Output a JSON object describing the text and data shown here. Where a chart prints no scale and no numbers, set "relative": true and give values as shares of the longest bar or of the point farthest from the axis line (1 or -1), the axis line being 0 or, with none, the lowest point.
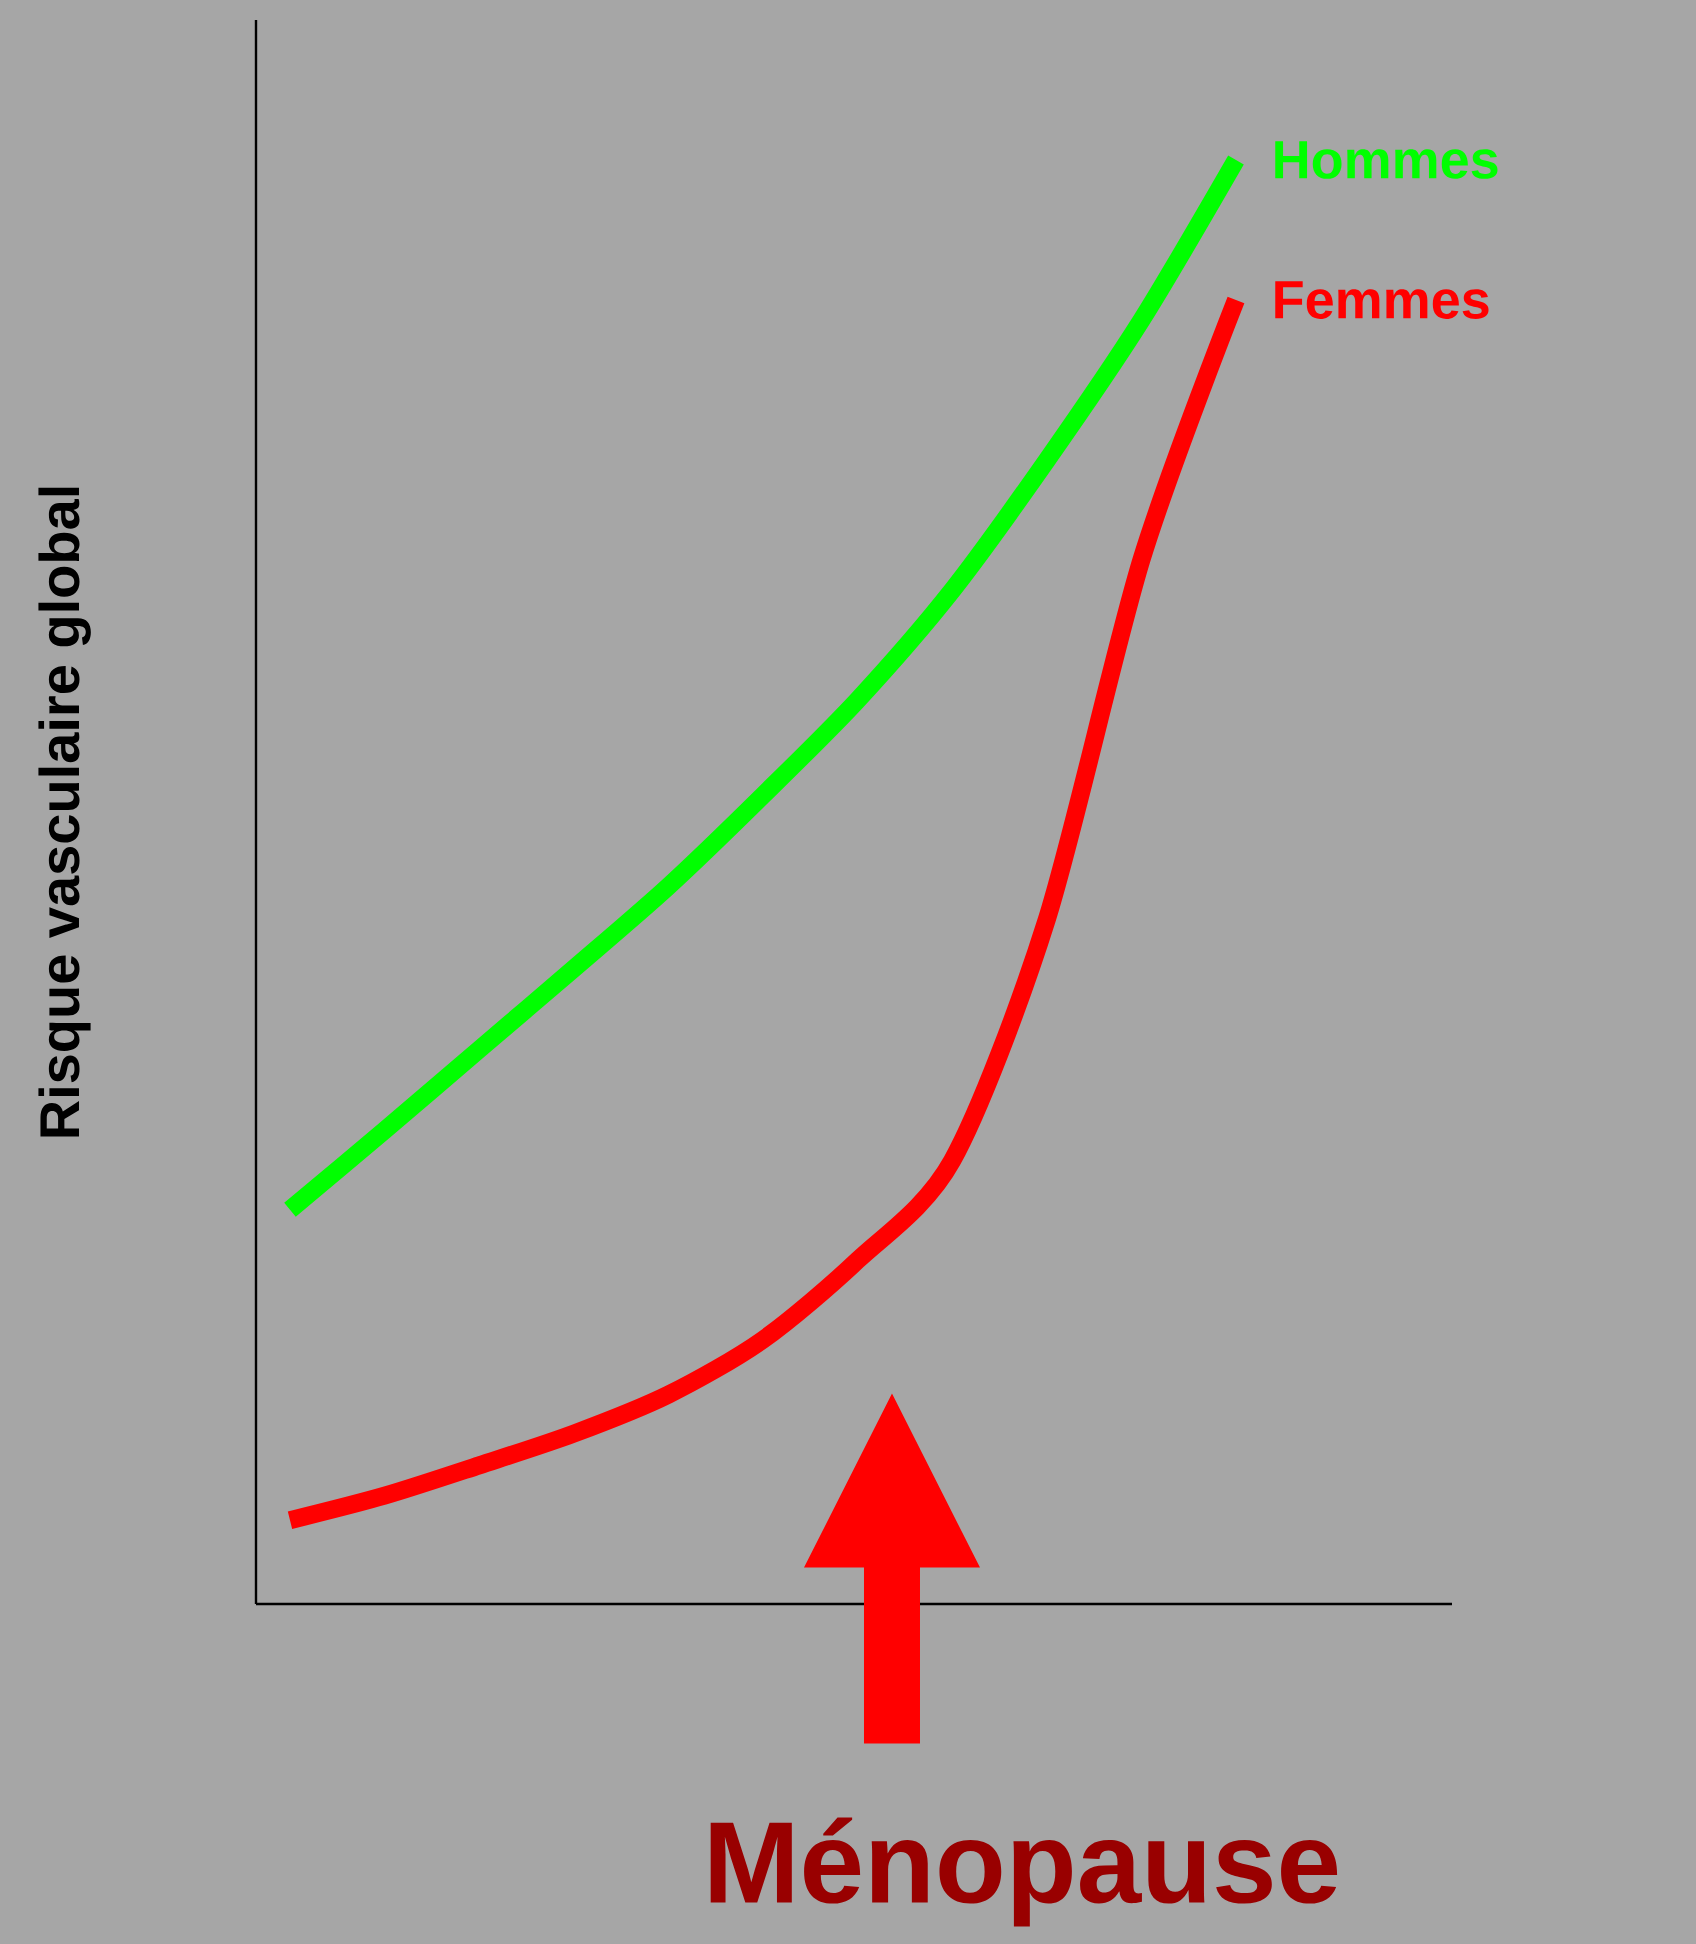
{
  "chart_data": {
    "type": "line",
    "relative": true,
    "ylabel": "Risque vasculaire global",
    "categories": [
      null,
      null,
      null,
      null,
      null,
      null,
      null,
      null,
      null,
      null,
      null
    ],
    "series": [
      {
        "name": "Hommes",
        "color": "#00ff00",
        "values": [
          0.273,
          0.328,
          0.384,
          0.44,
          0.497,
          0.56,
          0.626,
          0.702,
          0.792,
          0.889,
          1
        ]
      },
      {
        "name": "Femmes",
        "color": "#ff0000",
        "values": [
          0.058,
          0.075,
          0.096,
          0.118,
          0.145,
          0.183,
          0.238,
          0.307,
          0.474,
          0.723,
          0.903
        ]
      }
    ],
    "annotations": [
      "Ménopause"
    ],
    "legend": false,
    "marker": "none",
    "line_style": "solid"
  }
}
